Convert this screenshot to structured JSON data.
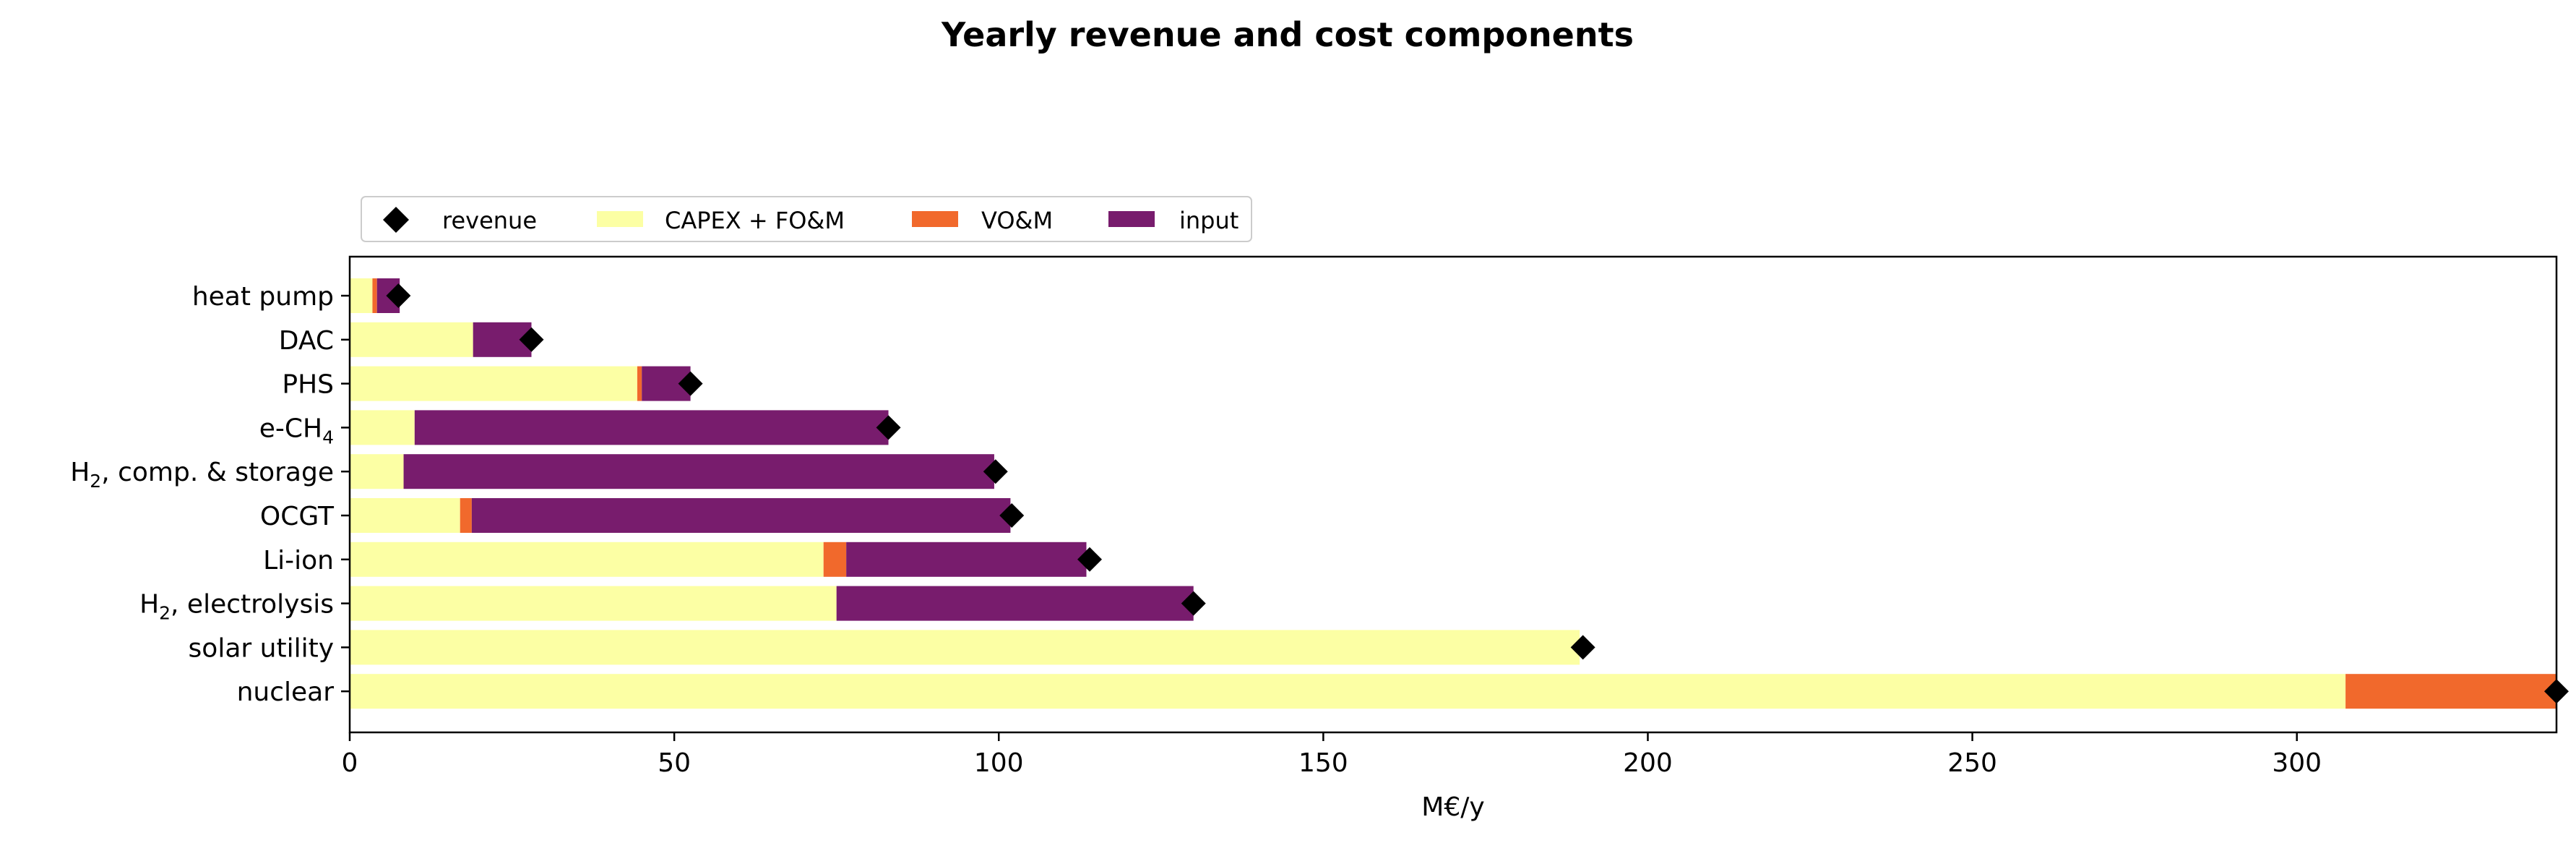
{
  "chart_data": {
    "type": "bar",
    "orientation": "horizontal",
    "stacked": true,
    "title": "Yearly revenue and cost components",
    "xlabel": "M€/y",
    "ylabel": "",
    "xlim": [
      0,
      340
    ],
    "xticks": [
      0,
      50,
      100,
      150,
      200,
      250,
      300
    ],
    "grid": false,
    "legend_position": "top-left, above plot",
    "categories": [
      "heat pump",
      "DAC",
      "PHS",
      "e-CH4",
      "H2, comp. & storage",
      "OCGT",
      "Li-ion",
      "H2, electrolysis",
      "solar utility",
      "nuclear"
    ],
    "category_labels": [
      {
        "main": "heat pump"
      },
      {
        "main": "DAC"
      },
      {
        "main": "PHS"
      },
      {
        "main": "e-CH",
        "sub": "4"
      },
      {
        "main": "H",
        "sub": "2",
        "rest": ", comp. & storage"
      },
      {
        "main": "OCGT"
      },
      {
        "main": "Li-ion"
      },
      {
        "main": "H",
        "sub": "2",
        "rest": ", electrolysis"
      },
      {
        "main": "solar utility"
      },
      {
        "main": "nuclear"
      }
    ],
    "series": [
      {
        "name": "CAPEX + FO&M",
        "color": "#fcffa4",
        "values": [
          3.5,
          19,
          44.3,
          10,
          8.3,
          17,
          73,
          75,
          189.5,
          307.5
        ]
      },
      {
        "name": "VO&M",
        "color": "#f1692c",
        "values": [
          0.7,
          0,
          0.7,
          0,
          0,
          1.8,
          3.5,
          0,
          0,
          32.5
        ]
      },
      {
        "name": "input",
        "color": "#781c6d",
        "values": [
          3.5,
          9,
          7.5,
          73,
          91,
          83,
          37,
          55,
          0,
          0
        ]
      }
    ],
    "revenue": {
      "name": "revenue",
      "color": "#000000",
      "marker": "diamond",
      "values": [
        7.5,
        28,
        52.5,
        83,
        99.5,
        102,
        114,
        130,
        190,
        340
      ]
    }
  }
}
